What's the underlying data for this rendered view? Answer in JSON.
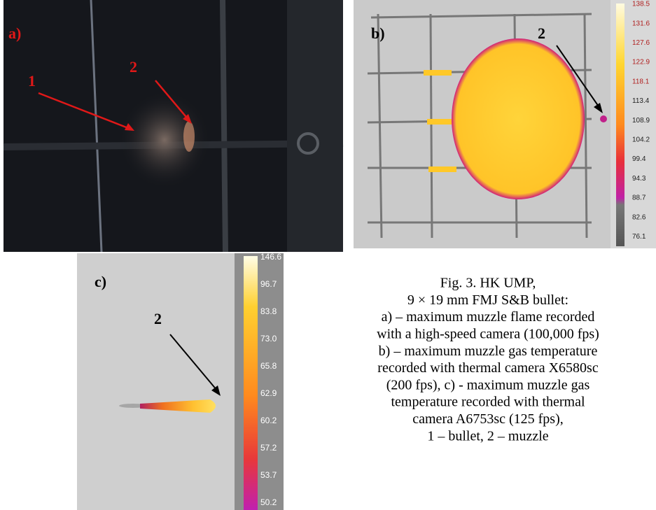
{
  "panel_a": {
    "label": "a)",
    "marker_1": "1",
    "marker_2": "2"
  },
  "panel_b": {
    "label": "b)",
    "marker_2": "2",
    "scale": [
      "138.5",
      "131.6",
      "127.6",
      "122.9",
      "118.1",
      "113.4",
      "108.9",
      "104.2",
      "99.4",
      "94.3",
      "88.7",
      "82.6",
      "76.1"
    ]
  },
  "panel_c": {
    "label": "c)",
    "marker_2": "2",
    "scale": [
      "146.6",
      "96.7",
      "83.8",
      "73.0",
      "65.8",
      "62.9",
      "60.2",
      "57.2",
      "53.7",
      "50.2"
    ]
  },
  "caption": [
    "Fig. 3. HK UMP,",
    "9 × 19 mm FMJ S&B bullet:",
    "a) – maximum muzzle flame recorded",
    "with a high-speed camera (100,000 fps)",
    "b) – maximum muzzle gas temperature",
    "recorded with thermal camera X6580sc",
    "(200 fps), c) - maximum muzzle gas",
    "temperature recorded with thermal",
    "camera A6753sc (125 fps),",
    "1 – bullet, 2 – muzzle"
  ]
}
